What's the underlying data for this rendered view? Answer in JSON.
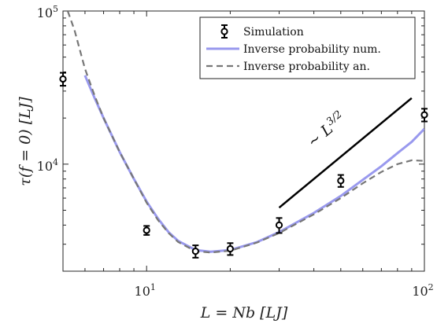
{
  "chart_data": {
    "type": "line",
    "xlabel": "L = Nb [LJ]",
    "ylabel": "τ(f = 0) [LJ]",
    "x_scale": "log",
    "y_scale": "log",
    "xlim": [
      5,
      100
    ],
    "ylim": [
      2000,
      100000
    ],
    "x_ticks": [
      {
        "value": 10,
        "label": "10",
        "sup": "1"
      },
      {
        "value": 100,
        "label": "10",
        "sup": "2"
      }
    ],
    "y_ticks": [
      {
        "value": 10000,
        "label": "10",
        "sup": "4"
      },
      {
        "value": 100000,
        "label": "10",
        "sup": "5"
      }
    ],
    "grid": false,
    "legend_position": "top-right",
    "series": [
      {
        "name": "Simulation",
        "kind": "errorbar",
        "color": "#000000",
        "x": [
          5,
          10,
          15,
          20,
          30,
          50,
          100
        ],
        "y": [
          36000,
          3700,
          2700,
          2800,
          4000,
          7800,
          21000
        ],
        "yerr": [
          3500,
          250,
          250,
          250,
          450,
          700,
          2000
        ]
      },
      {
        "name": "Inverse probability num.",
        "kind": "line",
        "color": "#9999ee",
        "x": [
          6,
          6.5,
          7,
          8,
          9,
          10,
          11,
          12,
          13,
          15,
          17,
          20,
          25,
          30,
          40,
          50,
          60,
          70,
          80,
          90,
          100
        ],
        "y": [
          38000,
          27000,
          20000,
          12000,
          8000,
          5700,
          4400,
          3600,
          3150,
          2750,
          2680,
          2750,
          3100,
          3600,
          4800,
          6200,
          7900,
          9700,
          11800,
          14000,
          17000
        ]
      },
      {
        "name": "Inverse probability an.",
        "kind": "dashed",
        "color": "#777777",
        "x": [
          5.2,
          5.5,
          6,
          6.5,
          7,
          8,
          9,
          10,
          11,
          12,
          13,
          15,
          17,
          20,
          25,
          30,
          40,
          50,
          60,
          70,
          80,
          90,
          100
        ],
        "y": [
          100000,
          75000,
          42000,
          28000,
          20000,
          12000,
          8000,
          5600,
          4300,
          3550,
          3100,
          2700,
          2650,
          2720,
          3080,
          3550,
          4700,
          6000,
          7500,
          8900,
          10000,
          10600,
          10500
        ]
      }
    ],
    "annotations": [
      {
        "kind": "scaling-line",
        "label_prefix": "∼ ",
        "label_base": "L",
        "label_exp": "3/2",
        "x": [
          30,
          90
        ],
        "y": [
          5200,
          27000
        ]
      }
    ]
  }
}
